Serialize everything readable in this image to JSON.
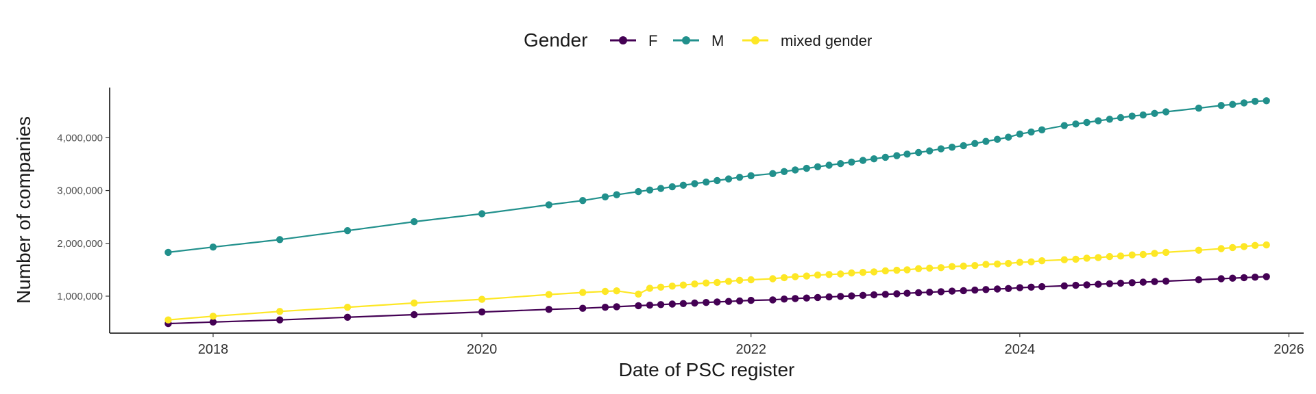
{
  "chart_data": {
    "type": "line",
    "xlabel": "Date of PSC register",
    "ylabel": "Number of companies",
    "x_ticks": [
      "2018",
      "2020",
      "2022",
      "2024",
      "2026"
    ],
    "y_ticks": [
      "1,000,000",
      "2,000,000",
      "3,000,000",
      "4,000,000"
    ],
    "xlim": [
      "2017-03-26",
      "2026-02-10"
    ],
    "ylim": [
      300000,
      4950000
    ],
    "grid": false,
    "legend": {
      "title": "Gender",
      "position": "top"
    },
    "series": [
      {
        "name": "F",
        "color": "#440154",
        "points": [
          [
            "2017-09-01",
            480000
          ],
          [
            "2018-01-01",
            510000
          ],
          [
            "2018-07-01",
            550000
          ],
          [
            "2019-01-01",
            600000
          ],
          [
            "2019-07-01",
            650000
          ],
          [
            "2020-01-01",
            700000
          ],
          [
            "2020-07-01",
            750000
          ],
          [
            "2020-10-01",
            770000
          ],
          [
            "2020-12-01",
            790000
          ],
          [
            "2021-01-01",
            800000
          ],
          [
            "2021-03-01",
            820000
          ],
          [
            "2021-04-01",
            830000
          ],
          [
            "2021-05-01",
            840000
          ],
          [
            "2021-06-01",
            850000
          ],
          [
            "2021-07-01",
            860000
          ],
          [
            "2021-08-01",
            870000
          ],
          [
            "2021-09-01",
            880000
          ],
          [
            "2021-10-01",
            890000
          ],
          [
            "2021-11-01",
            900000
          ],
          [
            "2021-12-01",
            910000
          ],
          [
            "2022-01-01",
            920000
          ],
          [
            "2022-03-01",
            930000
          ],
          [
            "2022-04-01",
            945000
          ],
          [
            "2022-05-01",
            955000
          ],
          [
            "2022-06-01",
            965000
          ],
          [
            "2022-07-01",
            975000
          ],
          [
            "2022-08-01",
            985000
          ],
          [
            "2022-09-01",
            995000
          ],
          [
            "2022-10-01",
            1005000
          ],
          [
            "2022-11-01",
            1015000
          ],
          [
            "2022-12-01",
            1025000
          ],
          [
            "2023-01-01",
            1035000
          ],
          [
            "2023-02-01",
            1045000
          ],
          [
            "2023-03-01",
            1055000
          ],
          [
            "2023-04-01",
            1065000
          ],
          [
            "2023-05-01",
            1075000
          ],
          [
            "2023-06-01",
            1085000
          ],
          [
            "2023-07-01",
            1095000
          ],
          [
            "2023-08-01",
            1105000
          ],
          [
            "2023-09-01",
            1115000
          ],
          [
            "2023-10-01",
            1125000
          ],
          [
            "2023-11-01",
            1135000
          ],
          [
            "2023-12-01",
            1145000
          ],
          [
            "2024-01-01",
            1160000
          ],
          [
            "2024-02-01",
            1170000
          ],
          [
            "2024-03-01",
            1180000
          ],
          [
            "2024-05-01",
            1195000
          ],
          [
            "2024-06-01",
            1205000
          ],
          [
            "2024-07-01",
            1215000
          ],
          [
            "2024-08-01",
            1225000
          ],
          [
            "2024-09-01",
            1235000
          ],
          [
            "2024-10-01",
            1245000
          ],
          [
            "2024-11-01",
            1255000
          ],
          [
            "2024-12-01",
            1265000
          ],
          [
            "2025-01-01",
            1275000
          ],
          [
            "2025-02-01",
            1285000
          ],
          [
            "2025-05-01",
            1310000
          ],
          [
            "2025-07-01",
            1330000
          ],
          [
            "2025-08-01",
            1340000
          ],
          [
            "2025-09-01",
            1350000
          ],
          [
            "2025-10-01",
            1360000
          ],
          [
            "2025-11-01",
            1370000
          ]
        ]
      },
      {
        "name": "M",
        "color": "#21908C",
        "points": [
          [
            "2017-09-01",
            1830000
          ],
          [
            "2018-01-01",
            1930000
          ],
          [
            "2018-07-01",
            2070000
          ],
          [
            "2019-01-01",
            2240000
          ],
          [
            "2019-07-01",
            2410000
          ],
          [
            "2020-01-01",
            2560000
          ],
          [
            "2020-07-01",
            2730000
          ],
          [
            "2020-10-01",
            2810000
          ],
          [
            "2020-12-01",
            2880000
          ],
          [
            "2021-01-01",
            2920000
          ],
          [
            "2021-03-01",
            2980000
          ],
          [
            "2021-04-01",
            3010000
          ],
          [
            "2021-05-01",
            3040000
          ],
          [
            "2021-06-01",
            3070000
          ],
          [
            "2021-07-01",
            3100000
          ],
          [
            "2021-08-01",
            3130000
          ],
          [
            "2021-09-01",
            3160000
          ],
          [
            "2021-10-01",
            3190000
          ],
          [
            "2021-11-01",
            3220000
          ],
          [
            "2021-12-01",
            3250000
          ],
          [
            "2022-01-01",
            3280000
          ],
          [
            "2022-03-01",
            3320000
          ],
          [
            "2022-04-01",
            3360000
          ],
          [
            "2022-05-01",
            3390000
          ],
          [
            "2022-06-01",
            3420000
          ],
          [
            "2022-07-01",
            3450000
          ],
          [
            "2022-08-01",
            3480000
          ],
          [
            "2022-09-01",
            3510000
          ],
          [
            "2022-10-01",
            3540000
          ],
          [
            "2022-11-01",
            3570000
          ],
          [
            "2022-12-01",
            3600000
          ],
          [
            "2023-01-01",
            3630000
          ],
          [
            "2023-02-01",
            3660000
          ],
          [
            "2023-03-01",
            3690000
          ],
          [
            "2023-04-01",
            3720000
          ],
          [
            "2023-05-01",
            3750000
          ],
          [
            "2023-06-01",
            3790000
          ],
          [
            "2023-07-01",
            3820000
          ],
          [
            "2023-08-01",
            3850000
          ],
          [
            "2023-09-01",
            3890000
          ],
          [
            "2023-10-01",
            3930000
          ],
          [
            "2023-11-01",
            3970000
          ],
          [
            "2023-12-01",
            4010000
          ],
          [
            "2024-01-01",
            4070000
          ],
          [
            "2024-02-01",
            4110000
          ],
          [
            "2024-03-01",
            4150000
          ],
          [
            "2024-05-01",
            4230000
          ],
          [
            "2024-06-01",
            4260000
          ],
          [
            "2024-07-01",
            4290000
          ],
          [
            "2024-08-01",
            4320000
          ],
          [
            "2024-09-01",
            4350000
          ],
          [
            "2024-10-01",
            4380000
          ],
          [
            "2024-11-01",
            4410000
          ],
          [
            "2024-12-01",
            4430000
          ],
          [
            "2025-01-01",
            4460000
          ],
          [
            "2025-02-01",
            4490000
          ],
          [
            "2025-05-01",
            4560000
          ],
          [
            "2025-07-01",
            4610000
          ],
          [
            "2025-08-01",
            4630000
          ],
          [
            "2025-09-01",
            4660000
          ],
          [
            "2025-10-01",
            4690000
          ],
          [
            "2025-11-01",
            4700000
          ]
        ]
      },
      {
        "name": "mixed gender",
        "color": "#FDE725",
        "points": [
          [
            "2017-09-01",
            550000
          ],
          [
            "2018-01-01",
            620000
          ],
          [
            "2018-07-01",
            710000
          ],
          [
            "2019-01-01",
            790000
          ],
          [
            "2019-07-01",
            870000
          ],
          [
            "2020-01-01",
            940000
          ],
          [
            "2020-07-01",
            1030000
          ],
          [
            "2020-10-01",
            1070000
          ],
          [
            "2020-12-01",
            1090000
          ],
          [
            "2021-01-01",
            1100000
          ],
          [
            "2021-03-01",
            1040000
          ],
          [
            "2021-04-01",
            1150000
          ],
          [
            "2021-05-01",
            1170000
          ],
          [
            "2021-06-01",
            1190000
          ],
          [
            "2021-07-01",
            1210000
          ],
          [
            "2021-08-01",
            1230000
          ],
          [
            "2021-09-01",
            1250000
          ],
          [
            "2021-10-01",
            1260000
          ],
          [
            "2021-11-01",
            1280000
          ],
          [
            "2021-12-01",
            1300000
          ],
          [
            "2022-01-01",
            1310000
          ],
          [
            "2022-03-01",
            1330000
          ],
          [
            "2022-04-01",
            1350000
          ],
          [
            "2022-05-01",
            1370000
          ],
          [
            "2022-06-01",
            1380000
          ],
          [
            "2022-07-01",
            1400000
          ],
          [
            "2022-08-01",
            1410000
          ],
          [
            "2022-09-01",
            1420000
          ],
          [
            "2022-10-01",
            1440000
          ],
          [
            "2022-11-01",
            1450000
          ],
          [
            "2022-12-01",
            1460000
          ],
          [
            "2023-01-01",
            1480000
          ],
          [
            "2023-02-01",
            1490000
          ],
          [
            "2023-03-01",
            1500000
          ],
          [
            "2023-04-01",
            1520000
          ],
          [
            "2023-05-01",
            1530000
          ],
          [
            "2023-06-01",
            1540000
          ],
          [
            "2023-07-01",
            1560000
          ],
          [
            "2023-08-01",
            1570000
          ],
          [
            "2023-09-01",
            1580000
          ],
          [
            "2023-10-01",
            1600000
          ],
          [
            "2023-11-01",
            1610000
          ],
          [
            "2023-12-01",
            1620000
          ],
          [
            "2024-01-01",
            1640000
          ],
          [
            "2024-02-01",
            1650000
          ],
          [
            "2024-03-01",
            1670000
          ],
          [
            "2024-05-01",
            1690000
          ],
          [
            "2024-06-01",
            1700000
          ],
          [
            "2024-07-01",
            1720000
          ],
          [
            "2024-08-01",
            1730000
          ],
          [
            "2024-09-01",
            1750000
          ],
          [
            "2024-10-01",
            1760000
          ],
          [
            "2024-11-01",
            1780000
          ],
          [
            "2024-12-01",
            1790000
          ],
          [
            "2025-01-01",
            1810000
          ],
          [
            "2025-02-01",
            1830000
          ],
          [
            "2025-05-01",
            1870000
          ],
          [
            "2025-07-01",
            1900000
          ],
          [
            "2025-08-01",
            1920000
          ],
          [
            "2025-09-01",
            1940000
          ],
          [
            "2025-10-01",
            1960000
          ],
          [
            "2025-11-01",
            1970000
          ]
        ]
      }
    ]
  }
}
